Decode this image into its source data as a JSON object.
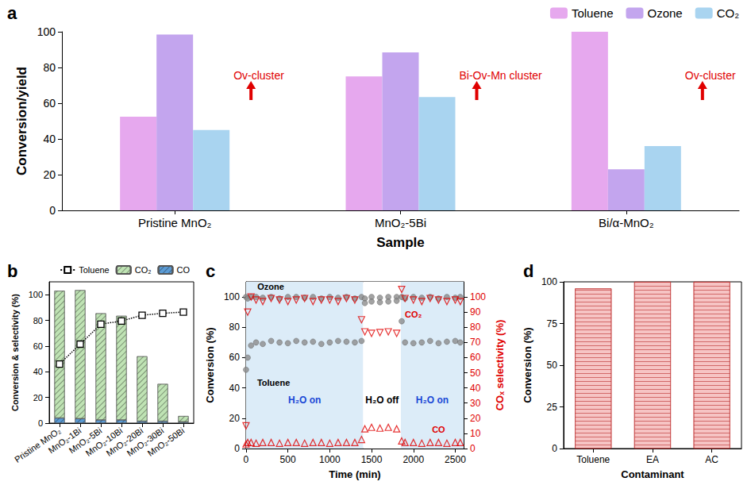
{
  "chart_data": [
    {
      "title": "a",
      "type": "bar",
      "categories": [
        "Pristine MnO₂",
        "MnO₂-5Bi",
        "Bi/α-MnO₂"
      ],
      "series": [
        {
          "name": "Toluene",
          "color": "#e6a8ee",
          "values": [
            52.5,
            75,
            100
          ]
        },
        {
          "name": "Ozone",
          "color": "#c3a5ee",
          "values": [
            98.5,
            88.5,
            23
          ]
        },
        {
          "name": "CO₂",
          "color": "#a9d4f0",
          "values": [
            45,
            63.5,
            36
          ]
        }
      ],
      "xlabel": "Sample",
      "ylabel": "Conversion/yield",
      "ylim": [
        0,
        100
      ],
      "yticks": [
        0,
        20,
        40,
        60,
        80,
        100
      ],
      "grid": false,
      "legend": "top-right",
      "annotations": [
        {
          "category": "Pristine MnO₂",
          "text": "Ov-cluster"
        },
        {
          "category": "MnO₂-5Bi",
          "text": "Bi-Ov-Mn cluster"
        },
        {
          "category": "Bi/α-MnO₂",
          "text": "Ov-cluster"
        }
      ]
    },
    {
      "title": "b",
      "type": "bar",
      "categories": [
        "Pristine MnO₂",
        "MnO₂-1Bi",
        "MnO₂-5Bi",
        "MnO₂-10Bi",
        "MnO₂-20Bi",
        "MnO₂-30Bi",
        "MnO₂-50Bi"
      ],
      "stacked": true,
      "series": [
        {
          "name": "CO",
          "color": "#5b9bd5",
          "values": [
            4,
            3.5,
            2.5,
            2.5,
            1.5,
            1.5,
            1
          ]
        },
        {
          "name": "CO₂",
          "color": "#bfe3b4",
          "values": [
            99,
            100,
            83,
            81,
            50.5,
            29,
            4.5
          ]
        },
        {
          "name": "Toluene",
          "type": "line",
          "color": "#000000",
          "marker": "square",
          "line_style": "dotted",
          "values": [
            46,
            61.5,
            77,
            79.5,
            84,
            85.5,
            86.5
          ]
        }
      ],
      "ylabel": "Conversion & selectivity (%)",
      "ylim": [
        0,
        110
      ],
      "yticks": [
        0,
        20,
        40,
        60,
        80,
        100
      ],
      "grid": false,
      "legend": "top"
    },
    {
      "title": "c",
      "type": "scatter",
      "x": [
        0,
        20,
        60,
        120,
        200,
        300,
        400,
        500,
        600,
        700,
        800,
        900,
        1000,
        1100,
        1200,
        1300,
        1380,
        1420,
        1500,
        1600,
        1700,
        1800,
        1860,
        1900,
        2000,
        2100,
        2200,
        2300,
        2400,
        2500,
        2560
      ],
      "series": [
        {
          "name": "Ozone",
          "color": "#8c8c8c",
          "marker": "circle",
          "values": [
            100,
            99,
            100,
            100,
            99.5,
            100,
            99,
            100,
            100,
            99.5,
            100,
            99,
            100,
            99.5,
            100,
            99,
            100,
            99,
            100,
            99.5,
            100,
            100,
            100,
            99,
            100,
            99.5,
            100,
            99,
            100,
            99.5,
            100
          ]
        },
        {
          "name": "Toluene",
          "color": "#8c8c8c",
          "marker": "circle",
          "values": [
            52,
            60,
            68,
            70,
            69,
            71,
            70,
            69.5,
            71,
            70,
            70.5,
            69,
            70,
            71,
            70.5,
            70,
            71,
            96,
            97,
            96.5,
            97,
            97.5,
            84,
            70,
            69.5,
            70,
            71,
            69.5,
            70.5,
            71,
            70
          ]
        },
        {
          "name": "CO₂",
          "color": "#e00000",
          "marker": "triangle-down",
          "axis": "y2",
          "values": [
            15,
            90,
            100,
            98,
            97,
            99,
            98,
            97,
            98,
            99,
            97,
            98,
            98,
            97,
            99,
            98,
            85,
            77,
            76,
            76.5,
            77,
            76,
            105,
            99,
            98,
            97,
            99,
            98,
            97,
            98,
            97
          ]
        },
        {
          "name": "CO",
          "color": "#e00000",
          "marker": "triangle",
          "axis": "y2",
          "values": [
            3,
            4,
            4,
            3.5,
            4,
            4,
            3.5,
            4,
            4,
            3.5,
            4,
            4,
            3.5,
            4,
            4,
            4,
            6,
            13,
            14,
            13.5,
            14,
            13,
            5,
            4,
            4,
            3.5,
            4,
            4,
            3.5,
            4,
            4
          ]
        }
      ],
      "xlabel": "Time (min)",
      "ylabel": "Conversion (%)",
      "y2label": "COₓ selectivity (%)",
      "xlim": [
        0,
        2600
      ],
      "xticks": [
        0,
        500,
        1000,
        1500,
        2000,
        2500
      ],
      "ylim": [
        0,
        110
      ],
      "yticks": [
        0,
        20,
        40,
        60,
        80,
        100
      ],
      "y2lim": [
        0,
        110
      ],
      "y2ticks": [
        0,
        10,
        20,
        30,
        40,
        50,
        60,
        70,
        80,
        90,
        100
      ],
      "grid": false,
      "regions": [
        {
          "label": "H₂O on",
          "start": 0,
          "end": 1400,
          "color": "#dcecf8"
        },
        {
          "label": "H₂O off",
          "start": 1400,
          "end": 1850,
          "color": "#ffffff"
        },
        {
          "label": "H₂O on",
          "start": 1850,
          "end": 2600,
          "color": "#dcecf8"
        }
      ]
    },
    {
      "title": "d",
      "type": "bar",
      "categories": [
        "Toluene",
        "EA",
        "AC"
      ],
      "values": [
        96,
        100,
        100
      ],
      "color": "#f6c4c4",
      "xlabel": "Contaminant",
      "ylabel": "Conversion (%)",
      "ylim": [
        0,
        100
      ],
      "yticks": [
        0,
        25,
        50,
        75,
        100
      ],
      "grid": false
    }
  ]
}
